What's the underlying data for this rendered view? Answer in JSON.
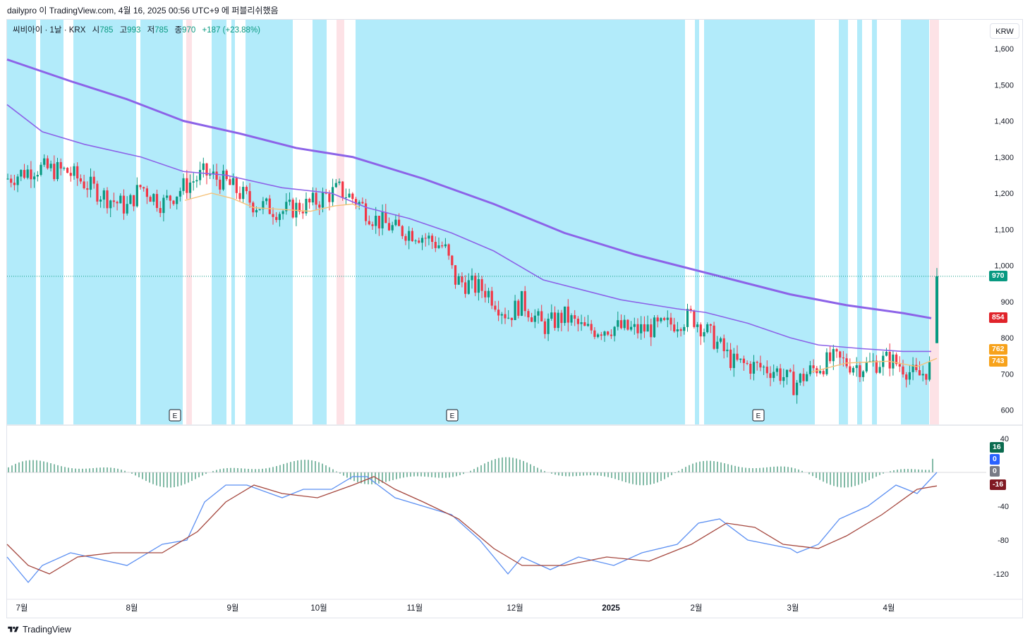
{
  "caption": "dailypro 이 TradingView.com, 4월 16, 2025 00:56 UTC+9 에 퍼블리쉬했음",
  "legend": {
    "symbol": "씨비아이 · 1날 · KRX",
    "open_label": "시",
    "open": "785",
    "high_label": "고",
    "high": "993",
    "low_label": "저",
    "low": "785",
    "close_label": "종",
    "close": "970",
    "change": "+187 (+23.88%)"
  },
  "currency_button": "KRW",
  "price_axis_labels": [
    "1,600",
    "1,500",
    "1,400",
    "1,300",
    "1,200",
    "1,100",
    "1,000",
    "900",
    "800",
    "700",
    "600"
  ],
  "price_tags": [
    {
      "label": "970",
      "color": "#089981"
    },
    {
      "label": "854",
      "color": "#e0232a"
    },
    {
      "label": "762",
      "color": "#f7a21b"
    },
    {
      "label": "743",
      "color": "#f7a21b"
    }
  ],
  "osc_axis_labels": [
    "40",
    "-40",
    "-80",
    "-120"
  ],
  "osc_tags": [
    {
      "label": "16",
      "color": "#0b6b4f"
    },
    {
      "label": "0",
      "color": "#2962ff"
    },
    {
      "label": "0",
      "color": "#787b86"
    },
    {
      "label": "-16",
      "color": "#801922"
    }
  ],
  "earnings_marker": "E",
  "time_labels": [
    "7월",
    "8월",
    "9월",
    "10월",
    "11월",
    "12월",
    "2025",
    "2월",
    "3월",
    "4월"
  ],
  "footer_brand": "TradingView",
  "colors": {
    "up": "#089981",
    "down": "#f23645",
    "band_blue": "#b2ebfa",
    "band_pink": "#fde2e6",
    "ma_long": "#8c63e8",
    "ma_mid": "#8c63e8",
    "ma_short": "#f5c27a",
    "osc_fast": "#5b8ff2",
    "osc_slow": "#a5473e",
    "hist": "#2e8b6b"
  },
  "chart_data": {
    "type": "candlestick",
    "price_range": [
      560,
      1680
    ],
    "osc_range": [
      -150,
      50
    ],
    "current_price": 970,
    "series_ma_long_ends": [
      1570,
      854
    ],
    "series_ma_mid_ends": [
      1445,
      762
    ],
    "series_ma_short_end": 743,
    "oscillator_last": {
      "histogram": 16,
      "fast": 0,
      "slow": -16
    }
  }
}
